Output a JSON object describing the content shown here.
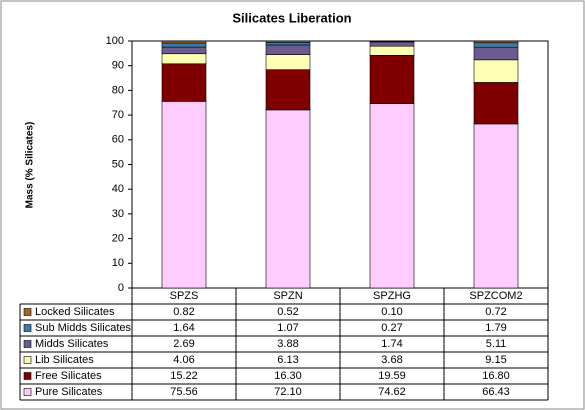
{
  "chart_data": {
    "type": "stacked-bar",
    "title": "Silicates Liberation",
    "y_label": "Mass (% Silicates)",
    "categories": [
      "SPZS",
      "SPZN",
      "SPZHG",
      "SPZCOM2"
    ],
    "series": [
      {
        "name": "Locked Silicates",
        "color": "#a0652a",
        "values": [
          0.82,
          0.52,
          0.1,
          0.72
        ],
        "value_labels": [
          "0.82",
          "0.52",
          "0.10",
          "0.72"
        ]
      },
      {
        "name": "Sub Midds Silicates",
        "color": "#3d7aa8",
        "values": [
          1.64,
          1.07,
          0.27,
          1.79
        ],
        "value_labels": [
          "1.64",
          "1.07",
          "0.27",
          "1.79"
        ]
      },
      {
        "name": "Midds Silicates",
        "color": "#6b5b8e",
        "values": [
          2.69,
          3.88,
          1.74,
          5.11
        ],
        "value_labels": [
          "2.69",
          "3.88",
          "1.74",
          "5.11"
        ]
      },
      {
        "name": "Lib Silicates",
        "color": "#ffffb3",
        "values": [
          4.06,
          6.13,
          3.68,
          9.15
        ],
        "value_labels": [
          "4.06",
          "6.13",
          "3.68",
          "9.15"
        ]
      },
      {
        "name": "Free Silicates",
        "color": "#800000",
        "values": [
          15.22,
          16.3,
          19.59,
          16.8
        ],
        "value_labels": [
          "15.22",
          "16.30",
          "19.59",
          "16.80"
        ]
      },
      {
        "name": "Pure Silicates",
        "color": "#ffccff",
        "values": [
          75.56,
          72.1,
          74.62,
          66.43
        ],
        "value_labels": [
          "75.56",
          "72.10",
          "74.62",
          "66.43"
        ]
      }
    ],
    "ylim": [
      0,
      100
    ],
    "yticks": [
      0,
      10,
      20,
      30,
      40,
      50,
      60,
      70,
      80,
      90,
      100
    ],
    "grid": false
  }
}
